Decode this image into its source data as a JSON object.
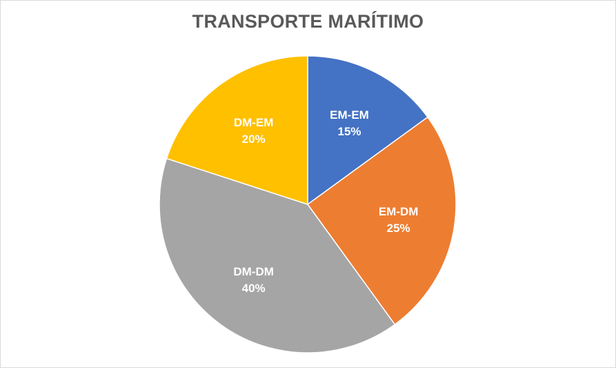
{
  "chart_data": {
    "type": "pie",
    "title": "TRANSPORTE MARÍTIMO",
    "categories": [
      "EM-EM",
      "EM-DM",
      "DM-DM",
      "DM-EM"
    ],
    "values": [
      15,
      25,
      40,
      20
    ],
    "labels": [
      "15%",
      "25%",
      "40%",
      "20%"
    ],
    "colors": [
      "#4472C4",
      "#ED7D31",
      "#A5A5A5",
      "#FFC000"
    ],
    "legend": "none",
    "data_labels": "category and percent inside slices"
  }
}
